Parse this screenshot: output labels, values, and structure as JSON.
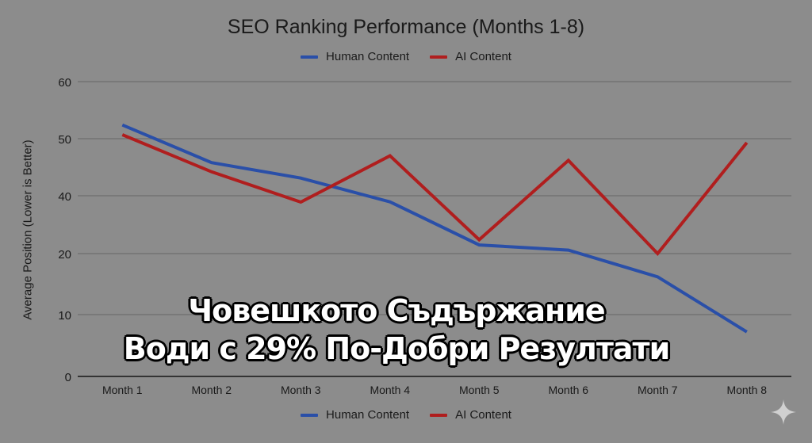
{
  "chart_data": {
    "type": "line",
    "title": "SEO Ranking Performance (Months 1-8)",
    "xlabel": "",
    "ylabel": "Average Position (Lower is Better)",
    "categories": [
      "Month 1",
      "Month 2",
      "Month 3",
      "Month 4",
      "Month 5",
      "Month 6",
      "Month 7",
      "Month 8"
    ],
    "y_tick_labels": [
      "60",
      "50",
      "40",
      "20",
      "10",
      "0"
    ],
    "ylim": [
      0,
      60
    ],
    "grid": true,
    "legend_position": "top and bottom",
    "series": [
      {
        "name": "Human Content",
        "color": "#2a4fa8",
        "values": [
          52.4,
          45.8,
          43.1,
          37.9,
          23.0,
          21.2,
          16.2,
          7.2
        ]
      },
      {
        "name": "AI Content",
        "color": "#b01e1e",
        "values": [
          50.7,
          44.2,
          37.8,
          47.0,
          24.8,
          46.2,
          20.0,
          49.3
        ]
      }
    ],
    "annotation": [
      "Човешкото Съдържание",
      "Води с 29% По-Добри Резултати"
    ]
  },
  "legend": {
    "items": [
      {
        "label": "Human Content",
        "color": "#2a4fa8"
      },
      {
        "label": "AI Content",
        "color": "#b01e1e"
      }
    ]
  },
  "overlay": {
    "line1": "Човешкото Съдържание",
    "line2": "Води с 29% По-Добри Резултати"
  },
  "icons": {
    "watermark": "sparkle-icon"
  }
}
